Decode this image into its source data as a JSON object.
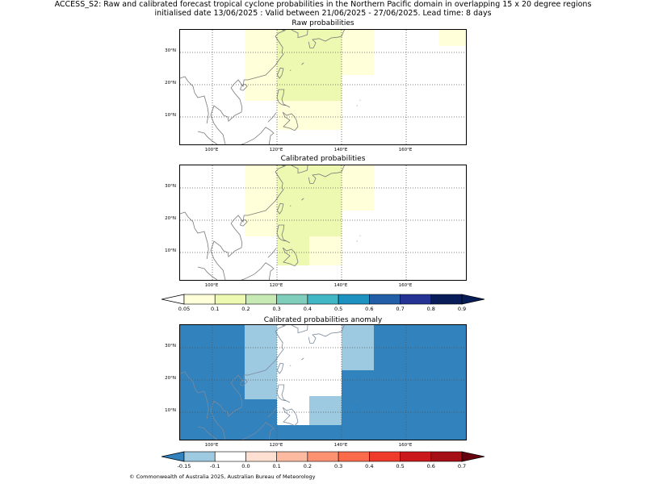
{
  "title_line1": "ACCESS_S2: Raw and calibrated forecast tropical cyclone probabilities in the Northern Pacific domain in overlapping 15 x 20 degree regions",
  "title_line2": "initialised date 13/06/2025 :  Valid between 21/06/2025 - 27/06/2025. Lead time: 8 days",
  "footer": "© Commonwealth of Australia 2025, Australian Bureau of Meteorology",
  "map_extent": {
    "lon": [
      90,
      179
    ],
    "lat": [
      1,
      37
    ]
  },
  "xticks": [
    {
      "lon": 100,
      "label": "100°E"
    },
    {
      "lon": 120,
      "label": "120°E"
    },
    {
      "lon": 140,
      "label": "140°E"
    },
    {
      "lon": 160,
      "label": "160°E"
    }
  ],
  "yticks": [
    {
      "lat": 10,
      "label": "10°N"
    },
    {
      "lat": 20,
      "label": "20°N"
    },
    {
      "lat": 30,
      "label": "30°N"
    }
  ],
  "panels": [
    {
      "name": "raw",
      "title": "Raw probabilities",
      "cells": [
        {
          "lon": [
            110,
            120
          ],
          "lat": [
            15,
            37
          ],
          "color": "#ffffd9"
        },
        {
          "lon": [
            120,
            140
          ],
          "lat": [
            15,
            37
          ],
          "color": "#edf8b1"
        },
        {
          "lon": [
            140,
            150
          ],
          "lat": [
            23,
            37
          ],
          "color": "#ffffd9"
        },
        {
          "lon": [
            120,
            140
          ],
          "lat": [
            6,
            15
          ],
          "color": "#ffffd9"
        },
        {
          "lon": [
            170,
            179
          ],
          "lat": [
            32,
            37
          ],
          "color": "#ffffd9"
        }
      ]
    },
    {
      "name": "calibrated",
      "title": "Calibrated probabilities",
      "cells": [
        {
          "lon": [
            110,
            120
          ],
          "lat": [
            15,
            37
          ],
          "color": "#ffffd9"
        },
        {
          "lon": [
            120,
            140
          ],
          "lat": [
            15,
            37
          ],
          "color": "#edf8b1"
        },
        {
          "lon": [
            140,
            150
          ],
          "lat": [
            23,
            37
          ],
          "color": "#ffffd9"
        },
        {
          "lon": [
            120,
            130
          ],
          "lat": [
            6,
            15
          ],
          "color": "#edf8b1"
        },
        {
          "lon": [
            130,
            140
          ],
          "lat": [
            6,
            15
          ],
          "color": "#ffffd9"
        }
      ]
    },
    {
      "name": "anomaly",
      "title": "Calibrated probabilities anomaly",
      "cells": [
        {
          "lon": [
            90,
            179
          ],
          "lat": [
            1,
            37
          ],
          "color": "#3182bd"
        },
        {
          "lon": [
            110,
            120
          ],
          "lat": [
            14,
            37
          ],
          "color": "#9ecae1"
        },
        {
          "lon": [
            120,
            140
          ],
          "lat": [
            6,
            37
          ],
          "color": "#ffffff"
        },
        {
          "lon": [
            140,
            150
          ],
          "lat": [
            23,
            37
          ],
          "color": "#9ecae1"
        },
        {
          "lon": [
            130,
            140
          ],
          "lat": [
            6,
            15
          ],
          "color": "#9ecae1"
        }
      ]
    }
  ],
  "colorbars": [
    {
      "name": "probability",
      "labels": [
        "0.05",
        "0.1",
        "0.2",
        "0.3",
        "0.4",
        "0.5",
        "0.6",
        "0.7",
        "0.8",
        "0.9"
      ],
      "under_color": "#ffffff",
      "over_color": "#081d58",
      "colors": [
        "#ffffd9",
        "#edf8b1",
        "#c7e9b4",
        "#7fcdbb",
        "#41b6c4",
        "#1d91c0",
        "#225ea8",
        "#253494",
        "#081d58"
      ]
    },
    {
      "name": "anomaly",
      "labels": [
        "-0.15",
        "-0.1",
        "0.0",
        "0.1",
        "0.2",
        "0.3",
        "0.4",
        "0.5",
        "0.6",
        "0.7"
      ],
      "under_color": "#3182bd",
      "over_color": "#67000d",
      "colors": [
        "#9ecae1",
        "#ffffff",
        "#fee0d2",
        "#fcbba1",
        "#fc9272",
        "#fb6a4a",
        "#ef3b2c",
        "#cb181d",
        "#a50f15"
      ]
    }
  ]
}
